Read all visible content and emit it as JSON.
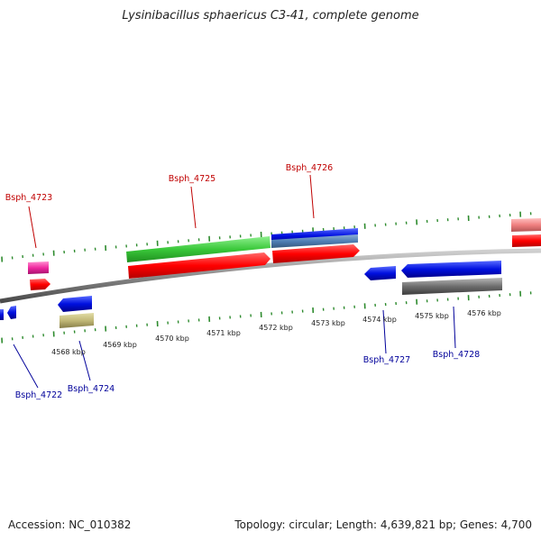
{
  "title": "Lysinibacillus sphaericus C3-41, complete genome",
  "footer": {
    "accession": "Accession: NC_010382",
    "summary": "Topology: circular; Length: 4,639,821 bp; Genes: 4,700"
  },
  "colors": {
    "forward_label": "#c00000",
    "reverse_label": "#00009a",
    "tick": "#2e8b2e",
    "backbone": "#8a8a8a"
  },
  "kbp_labels": [
    "4568 kbp",
    "4569 kbp",
    "4570 kbp",
    "4571 kbp",
    "4572 kbp",
    "4573 kbp",
    "4574 kbp",
    "4575 kbp",
    "4576 kbp"
  ],
  "genes": {
    "forward": [
      "Bsph_4723",
      "Bsph_4725",
      "Bsph_4726"
    ],
    "reverse": [
      "Bsph_4722",
      "Bsph_4724",
      "Bsph_4727",
      "Bsph_4728"
    ]
  }
}
